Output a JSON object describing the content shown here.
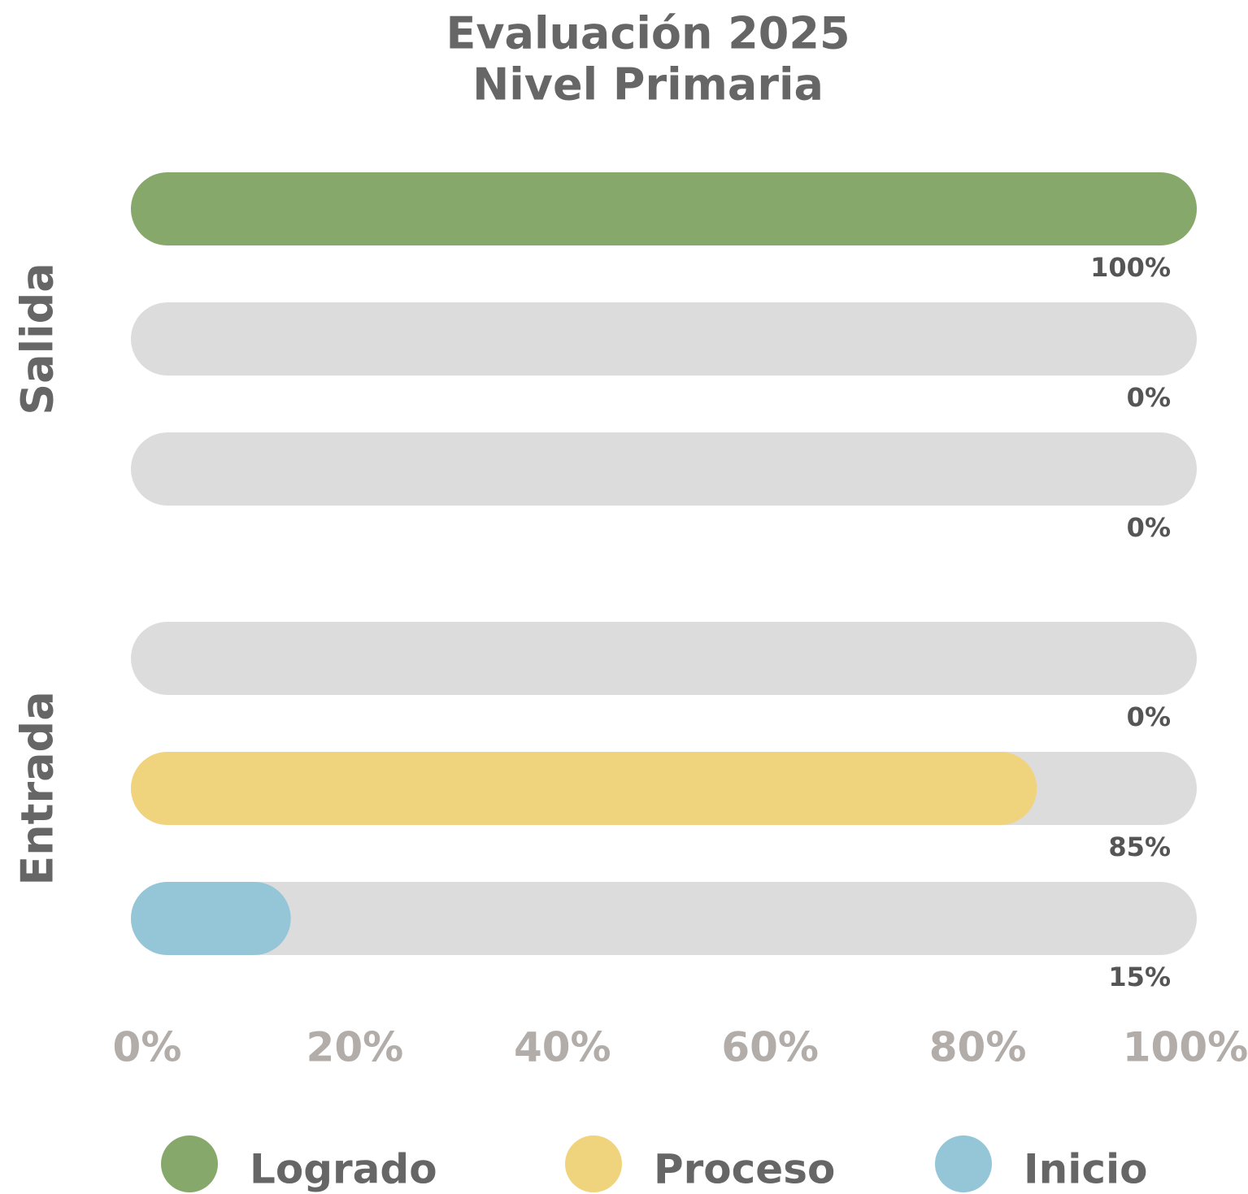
{
  "chart_data": {
    "type": "bar",
    "orientation": "horizontal",
    "title": "Evaluación 2025",
    "subtitle": "Nivel Primaria",
    "categories": [
      "Salida",
      "Entrada"
    ],
    "series": [
      {
        "name": "Logrado",
        "color": "#86a96b",
        "values": [
          100,
          0
        ],
        "value_labels": [
          "100%",
          "0%"
        ]
      },
      {
        "name": "Proceso",
        "color": "#f0d47d",
        "values": [
          0,
          85
        ],
        "value_labels": [
          "0%",
          "85%"
        ]
      },
      {
        "name": "Inicio",
        "color": "#94c6d8",
        "values": [
          0,
          15
        ],
        "value_labels": [
          "0%",
          "15%"
        ]
      }
    ],
    "track_color": "#dcdcdc",
    "xlim": [
      0,
      100
    ],
    "xticks": [
      {
        "value": 0,
        "label": "0%"
      },
      {
        "value": 20,
        "label": "20%"
      },
      {
        "value": 40,
        "label": "40%"
      },
      {
        "value": 60,
        "label": "60%"
      },
      {
        "value": 80,
        "label": "80%"
      },
      {
        "value": 100,
        "label": "100%"
      }
    ],
    "legend": "bottom"
  }
}
